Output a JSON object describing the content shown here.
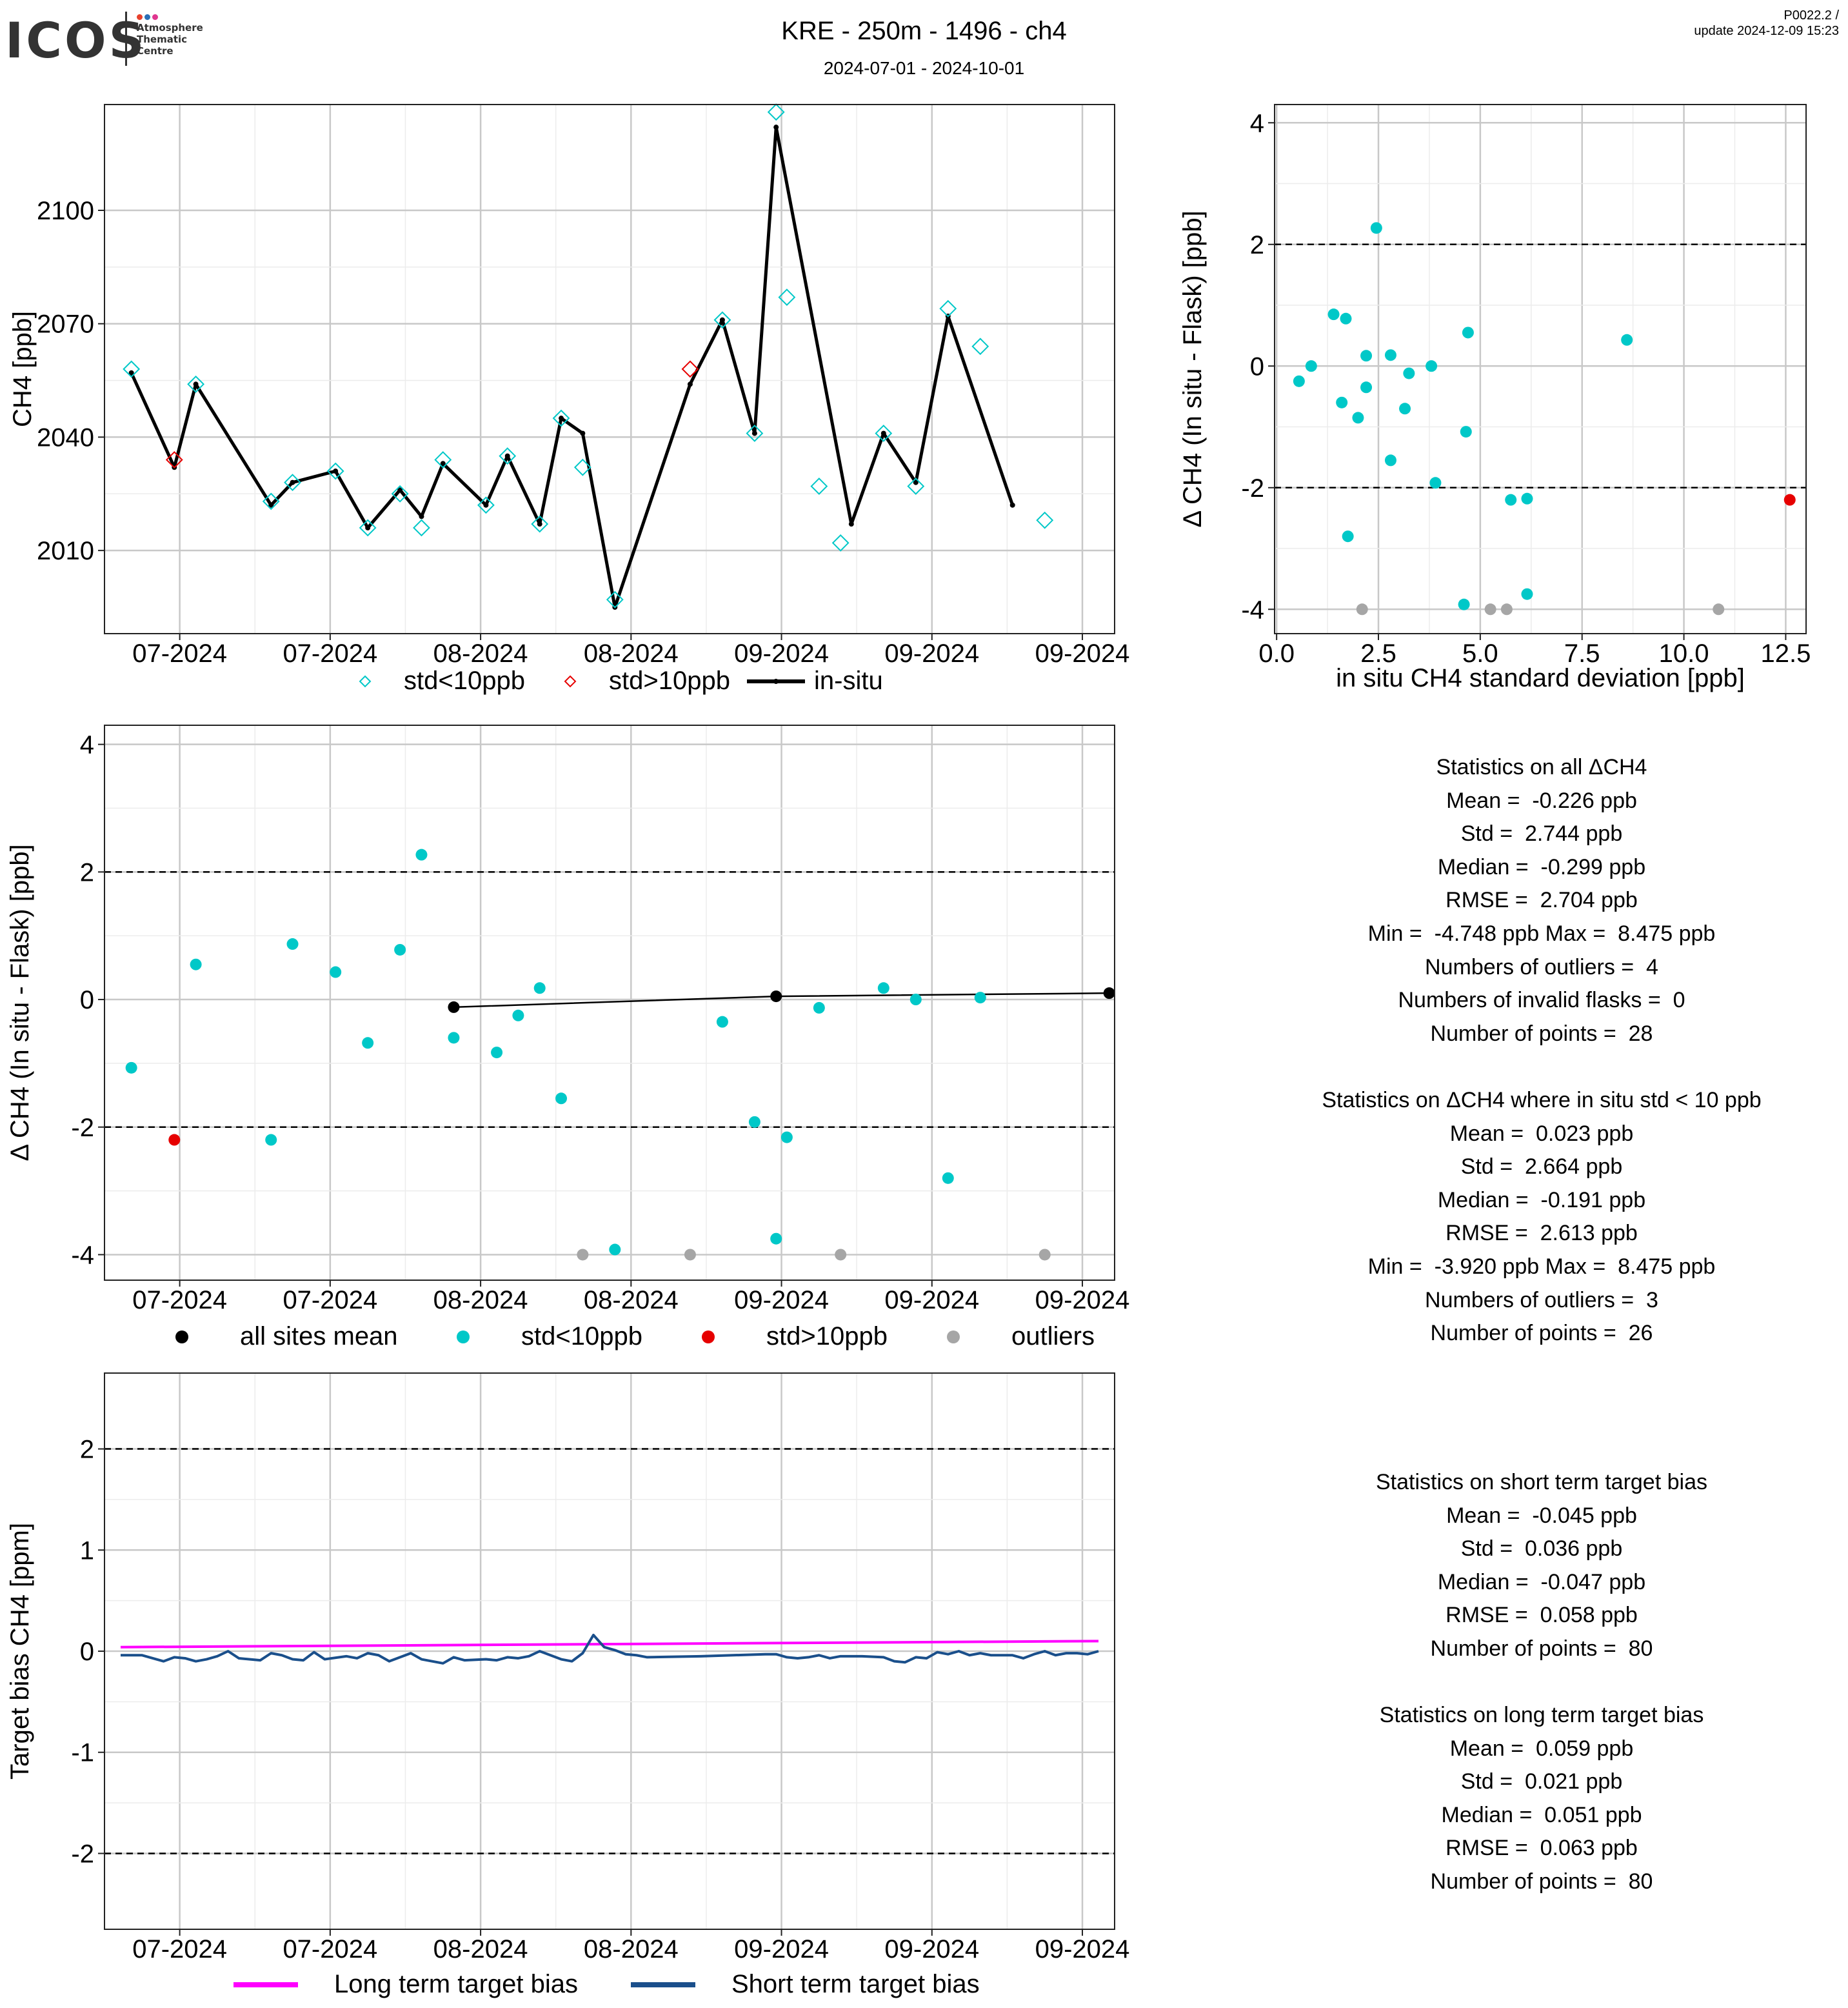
{
  "logo": {
    "wordmark": "ICOS",
    "subtitle": [
      "Atmosphere",
      "Thematic",
      "Centre"
    ],
    "dot_colors": [
      "#e8412c",
      "#2b6fb6",
      "#e0368f"
    ]
  },
  "header": {
    "title": "KRE - 250m - 1496 - ch4",
    "date_range": "2024-07-01 - 2024-10-01",
    "version": "P0022.2 /",
    "update": "update  2024-12-09 15:23"
  },
  "colors": {
    "cyan": "#00c8c8",
    "red": "#e60000",
    "grey": "#a6a6a6",
    "black": "#000000",
    "magenta": "#ff00ff",
    "navy": "#1a4f8b",
    "grid_major": "#c8c8c8",
    "grid_minor": "#ececec"
  },
  "chart_data": [
    {
      "id": "ch4_timeseries",
      "type": "line",
      "title": "",
      "xlabel": "",
      "ylabel": "CH4 [ppb]",
      "x_tick_labels": [
        "07-2024",
        "07-2024",
        "08-2024",
        "08-2024",
        "09-2024",
        "09-2024",
        "09-2024"
      ],
      "x_tick_positions_day": [
        7.5,
        21.5,
        35.5,
        49.5,
        63.5,
        77.5,
        91.5
      ],
      "xlim_day": [
        0.5,
        94.5
      ],
      "y_ticks": [
        2010,
        2040,
        2070,
        2100
      ],
      "ylim": [
        1988,
        2128
      ],
      "grid": true,
      "legend": {
        "position": "bottom",
        "entries": [
          "std<10ppb",
          "std>10ppb",
          "in-situ"
        ]
      },
      "in_situ_line": [
        [
          3,
          2057
        ],
        [
          7,
          2032
        ],
        [
          9,
          2054
        ],
        [
          16,
          2022
        ],
        [
          18,
          2028
        ],
        [
          22,
          2031
        ],
        [
          25,
          2016
        ],
        [
          28,
          2026
        ],
        [
          30,
          2019
        ],
        [
          32,
          2033
        ],
        [
          36,
          2022
        ],
        [
          38,
          2035
        ],
        [
          41,
          2017
        ],
        [
          43,
          2045
        ],
        [
          45,
          2041
        ],
        [
          48,
          1995
        ],
        [
          55,
          2054
        ],
        [
          58,
          2071
        ],
        [
          61,
          2041
        ],
        [
          63,
          2122
        ],
        [
          70,
          2017
        ],
        [
          73,
          2041
        ],
        [
          76,
          2028
        ],
        [
          79,
          2072
        ],
        [
          85,
          2022
        ]
      ],
      "flask_std_lt_10": [
        [
          3,
          2058
        ],
        [
          9,
          2054
        ],
        [
          16,
          2023
        ],
        [
          18,
          2028
        ],
        [
          22,
          2031
        ],
        [
          25,
          2016
        ],
        [
          28,
          2025
        ],
        [
          30,
          2016
        ],
        [
          32,
          2034
        ],
        [
          36,
          2022
        ],
        [
          38,
          2035
        ],
        [
          41,
          2017
        ],
        [
          43,
          2045
        ],
        [
          45,
          2032
        ],
        [
          48,
          1997
        ],
        [
          58,
          2071
        ],
        [
          61,
          2041
        ],
        [
          63,
          2126
        ],
        [
          64,
          2077
        ],
        [
          67,
          2027
        ],
        [
          69,
          2012
        ],
        [
          73,
          2041
        ],
        [
          76,
          2027
        ],
        [
          79,
          2074
        ],
        [
          82,
          2064
        ],
        [
          88,
          2018
        ]
      ],
      "flask_std_gt_10": [
        [
          7,
          2034
        ],
        [
          55,
          2058
        ]
      ]
    },
    {
      "id": "delta_vs_std",
      "type": "scatter",
      "title": "",
      "xlabel": "in situ CH4 standard deviation [ppb]",
      "ylabel": "Δ CH4 (In situ - Flask) [ppb]",
      "x_tick_labels": [
        "0.0",
        "2.5",
        "5.0",
        "7.5",
        "10.0",
        "12.5"
      ],
      "x_ticks": [
        0,
        2.5,
        5,
        7.5,
        10,
        12.5
      ],
      "xlim": [
        -0.05,
        13.0
      ],
      "y_tick_labels": [
        "-4",
        "-2",
        "0",
        "2",
        "4"
      ],
      "y_ticks": [
        -4,
        -2,
        0,
        2,
        4
      ],
      "ylim": [
        -4.4,
        4.3
      ],
      "hlines": [
        2,
        -2
      ],
      "grid": true,
      "std_lt_10": [
        [
          0.55,
          -0.25
        ],
        [
          0.85,
          0.0
        ],
        [
          1.4,
          0.85
        ],
        [
          1.6,
          -0.6
        ],
        [
          1.7,
          0.78
        ],
        [
          1.75,
          -2.8
        ],
        [
          2.0,
          -0.85
        ],
        [
          2.2,
          0.17
        ],
        [
          2.2,
          -0.35
        ],
        [
          2.45,
          2.27
        ],
        [
          2.8,
          0.18
        ],
        [
          2.8,
          -1.55
        ],
        [
          3.15,
          -0.7
        ],
        [
          3.25,
          -0.12
        ],
        [
          3.8,
          0.0
        ],
        [
          3.9,
          -1.92
        ],
        [
          4.6,
          -3.92
        ],
        [
          4.65,
          -1.08
        ],
        [
          4.7,
          0.55
        ],
        [
          5.75,
          -2.2
        ],
        [
          6.15,
          -2.18
        ],
        [
          6.15,
          -3.75
        ],
        [
          8.6,
          0.43
        ]
      ],
      "std_gt_10": [
        [
          12.6,
          -2.2
        ]
      ],
      "outliers": [
        [
          2.1,
          -4.0
        ],
        [
          5.25,
          -4.0
        ],
        [
          5.65,
          -4.0
        ],
        [
          10.85,
          -4.0
        ]
      ]
    },
    {
      "id": "delta_timeseries",
      "type": "scatter",
      "title": "",
      "xlabel": "",
      "ylabel": "Δ CH4 (In situ - Flask) [ppb]",
      "x_tick_labels": [
        "07-2024",
        "07-2024",
        "08-2024",
        "08-2024",
        "09-2024",
        "09-2024",
        "09-2024"
      ],
      "x_tick_positions_day": [
        7.5,
        21.5,
        35.5,
        49.5,
        63.5,
        77.5,
        91.5
      ],
      "xlim_day": [
        0.5,
        94.5
      ],
      "y_tick_labels": [
        "-4",
        "-2",
        "0",
        "2",
        "4"
      ],
      "y_ticks": [
        -4,
        -2,
        0,
        2,
        4
      ],
      "ylim": [
        -4.4,
        4.3
      ],
      "hlines": [
        2,
        -2
      ],
      "grid": true,
      "legend": {
        "position": "bottom",
        "entries": [
          "all sites mean",
          "std<10ppb",
          "std>10ppb",
          "outliers"
        ]
      },
      "all_sites_mean": [
        [
          33,
          -0.12
        ],
        [
          63,
          0.05
        ],
        [
          94,
          0.1
        ]
      ],
      "std_lt_10": [
        [
          3,
          -1.07
        ],
        [
          9,
          0.55
        ],
        [
          16,
          -2.2
        ],
        [
          18,
          0.87
        ],
        [
          22,
          0.43
        ],
        [
          25,
          -0.68
        ],
        [
          28,
          0.78
        ],
        [
          30,
          2.27
        ],
        [
          33,
          -0.6
        ],
        [
          37,
          -0.83
        ],
        [
          39,
          -0.25
        ],
        [
          41,
          0.18
        ],
        [
          43,
          -1.55
        ],
        [
          48,
          -3.92
        ],
        [
          58,
          -0.35
        ],
        [
          61,
          -1.92
        ],
        [
          63,
          -3.75
        ],
        [
          64,
          -2.16
        ],
        [
          67,
          -0.13
        ],
        [
          73,
          0.18
        ],
        [
          76,
          0.0
        ],
        [
          79,
          -2.8
        ],
        [
          82,
          0.03
        ]
      ],
      "std_gt_10": [
        [
          7,
          -2.2
        ]
      ],
      "outliers": [
        [
          45,
          -4.0
        ],
        [
          55,
          -4.0
        ],
        [
          69,
          -4.0
        ],
        [
          88,
          -4.0
        ]
      ]
    },
    {
      "id": "target_bias",
      "type": "line",
      "title": "",
      "xlabel": "",
      "ylabel": "Target bias CH4 [ppm]",
      "x_tick_labels": [
        "07-2024",
        "07-2024",
        "08-2024",
        "08-2024",
        "09-2024",
        "09-2024",
        "09-2024"
      ],
      "x_tick_positions_day": [
        7.5,
        21.5,
        35.5,
        49.5,
        63.5,
        77.5,
        91.5
      ],
      "xlim_day": [
        0.5,
        94.5
      ],
      "y_tick_labels": [
        "-2",
        "-1",
        "0",
        "1",
        "2"
      ],
      "y_ticks": [
        -2,
        -1,
        0,
        1,
        2
      ],
      "ylim": [
        -2.75,
        2.75
      ],
      "hlines": [
        2,
        -2
      ],
      "grid": true,
      "legend": {
        "position": "bottom",
        "entries": [
          "Long term target bias",
          "Short term target bias"
        ]
      },
      "long_term": [
        [
          2,
          0.04
        ],
        [
          93,
          0.1
        ]
      ],
      "short_term": [
        [
          2,
          -0.04
        ],
        [
          4,
          -0.04
        ],
        [
          6,
          -0.1
        ],
        [
          7,
          -0.06
        ],
        [
          8,
          -0.07
        ],
        [
          9,
          -0.1
        ],
        [
          10,
          -0.08
        ],
        [
          11,
          -0.05
        ],
        [
          12,
          0.0
        ],
        [
          13,
          -0.07
        ],
        [
          15,
          -0.09
        ],
        [
          16,
          -0.02
        ],
        [
          17,
          -0.04
        ],
        [
          18,
          -0.08
        ],
        [
          19,
          -0.09
        ],
        [
          20,
          -0.01
        ],
        [
          21,
          -0.08
        ],
        [
          23,
          -0.05
        ],
        [
          24,
          -0.07
        ],
        [
          25,
          -0.02
        ],
        [
          26,
          -0.04
        ],
        [
          27,
          -0.1
        ],
        [
          28,
          -0.06
        ],
        [
          29,
          -0.02
        ],
        [
          30,
          -0.08
        ],
        [
          31,
          -0.1
        ],
        [
          32,
          -0.12
        ],
        [
          33,
          -0.06
        ],
        [
          34,
          -0.09
        ],
        [
          36,
          -0.08
        ],
        [
          37,
          -0.09
        ],
        [
          38,
          -0.06
        ],
        [
          39,
          -0.07
        ],
        [
          40,
          -0.05
        ],
        [
          41,
          0.0
        ],
        [
          42,
          -0.04
        ],
        [
          43,
          -0.08
        ],
        [
          44,
          -0.1
        ],
        [
          45,
          -0.02
        ],
        [
          46,
          0.16
        ],
        [
          47,
          0.04
        ],
        [
          48,
          0.01
        ],
        [
          49,
          -0.03
        ],
        [
          50,
          -0.04
        ],
        [
          51,
          -0.06
        ],
        [
          56,
          -0.05
        ],
        [
          62,
          -0.03
        ],
        [
          63,
          -0.03
        ],
        [
          64,
          -0.06
        ],
        [
          65,
          -0.07
        ],
        [
          66,
          -0.06
        ],
        [
          67,
          -0.04
        ],
        [
          68,
          -0.07
        ],
        [
          69,
          -0.05
        ],
        [
          71,
          -0.05
        ],
        [
          73,
          -0.06
        ],
        [
          74,
          -0.1
        ],
        [
          75,
          -0.11
        ],
        [
          76,
          -0.06
        ],
        [
          77,
          -0.07
        ],
        [
          78,
          -0.01
        ],
        [
          79,
          -0.03
        ],
        [
          80,
          0.0
        ],
        [
          81,
          -0.04
        ],
        [
          82,
          -0.02
        ],
        [
          83,
          -0.04
        ],
        [
          85,
          -0.04
        ],
        [
          86,
          -0.07
        ],
        [
          87,
          -0.03
        ],
        [
          88,
          0.0
        ],
        [
          89,
          -0.04
        ],
        [
          90,
          -0.02
        ],
        [
          91,
          -0.02
        ],
        [
          92,
          -0.03
        ],
        [
          93,
          0.0
        ]
      ]
    }
  ],
  "stats_all": {
    "heading": "Statistics on all ΔCH4",
    "lines": [
      "Mean =  -0.226 ppb",
      "Std =  2.744 ppb",
      "Median =  -0.299 ppb",
      "RMSE =  2.704 ppb",
      "Min =  -4.748 ppb Max =  8.475 ppb",
      "Numbers of outliers =  4",
      "Numbers of invalid flasks =  0",
      "Number of points =  28"
    ]
  },
  "stats_std10": {
    "heading": "Statistics on ΔCH4 where in situ std < 10 ppb",
    "lines": [
      "Mean =  0.023 ppb",
      "Std =  2.664 ppb",
      "Median =  -0.191 ppb",
      "RMSE =  2.613 ppb",
      "Min =  -3.920 ppb Max =  8.475 ppb",
      "Numbers of outliers =  3",
      "Number of points =  26"
    ]
  },
  "stats_short": {
    "heading": "Statistics on short term target bias",
    "lines": [
      "Mean =  -0.045 ppb",
      "Std =  0.036 ppb",
      "Median =  -0.047 ppb",
      "RMSE =  0.058 ppb",
      "Number of points =  80"
    ]
  },
  "stats_long": {
    "heading": "Statistics on long term target bias",
    "lines": [
      "Mean =  0.059 ppb",
      "Std =  0.021 ppb",
      "Median =  0.051 ppb",
      "RMSE =  0.063 ppb",
      "Number of points =  80"
    ]
  }
}
